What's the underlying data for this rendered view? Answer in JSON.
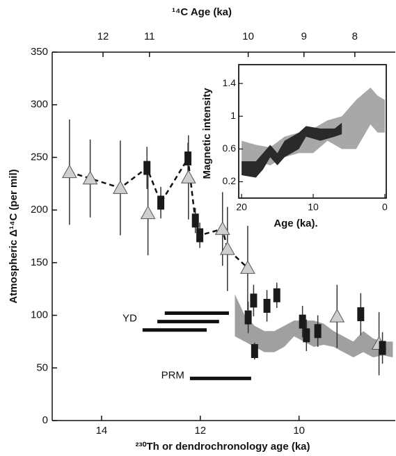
{
  "chart_data": [
    {
      "type": "scatter",
      "ylabel": "Atmospheric Δ¹⁴C (per mil)",
      "xlabel": "²³⁰Th or dendrochronology age (ka)",
      "x2label": "¹⁴C Age (ka)",
      "xlim": [
        15,
        8.05
      ],
      "ylim": [
        0,
        350
      ],
      "xticks": [
        14,
        12,
        10
      ],
      "yticks": [
        0,
        50,
        100,
        150,
        200,
        250,
        300,
        350
      ],
      "x2ticks": [
        12,
        11,
        10,
        9,
        8
      ],
      "x2tick_positions": [
        13.97,
        13.03,
        11.03,
        9.9,
        8.87
      ],
      "series": [
        {
          "marker": "triangle",
          "color": "#cfcfcf",
          "x": [
            14.65,
            14.23,
            13.62,
            13.06,
            12.24,
            11.55,
            11.45,
            11.04,
            9.23,
            8.38
          ],
          "values": [
            236,
            230,
            221,
            197,
            231,
            182,
            163,
            145,
            99,
            73
          ],
          "errors": [
            50,
            37,
            45,
            40,
            40,
            35,
            40,
            40,
            30,
            30
          ]
        },
        {
          "marker": "square",
          "color": "#1a1a1a",
          "x": [
            13.08,
            12.8,
            12.25,
            12.1,
            12.01,
            11.03,
            10.92,
            10.9,
            10.65,
            10.45,
            9.93,
            9.85,
            9.62,
            8.75,
            8.31
          ],
          "values": [
            240,
            207,
            249,
            190,
            176,
            98,
            114,
            66,
            109,
            119,
            94,
            81,
            85,
            101,
            69
          ],
          "errors": [
            20,
            15,
            15,
            12,
            12,
            15,
            15,
            8,
            15,
            12,
            15,
            15,
            15,
            20,
            15
          ]
        }
      ],
      "dashed_line": {
        "x": [
          14.65,
          14.23,
          13.62,
          13.08,
          12.8,
          12.25,
          12.1,
          12.01,
          11.55,
          11.45,
          11.04
        ],
        "values": [
          236,
          230,
          221,
          240,
          207,
          249,
          190,
          176,
          182,
          163,
          145
        ]
      },
      "band": {
        "color": "#a0a0a0",
        "x": [
          11.3,
          11.1,
          10.9,
          10.7,
          10.5,
          10.3,
          10.1,
          9.9,
          9.7,
          9.5,
          9.3,
          9.1,
          8.9,
          8.7,
          8.5,
          8.3,
          8.1
        ],
        "lower": [
          80,
          75,
          70,
          65,
          65,
          70,
          80,
          75,
          70,
          72,
          70,
          65,
          60,
          65,
          60,
          62,
          60
        ],
        "upper": [
          120,
          100,
          90,
          85,
          85,
          90,
          95,
          95,
          95,
          92,
          85,
          80,
          75,
          85,
          78,
          75,
          75
        ]
      },
      "intervals": [
        {
          "label": "YD",
          "bars": [
            {
              "y": 102,
              "start": 12.72,
              "end": 11.42
            },
            {
              "y": 94,
              "start": 12.87,
              "end": 11.62
            },
            {
              "y": 86,
              "start": 13.17,
              "end": 11.87
            }
          ]
        },
        {
          "label": "PRM",
          "bars": [
            {
              "y": 40,
              "start": 12.21,
              "end": 10.97
            }
          ]
        }
      ]
    },
    {
      "type": "area",
      "ylabel": "Magnetic intensity",
      "xlabel": "Age (ka).",
      "xlim": [
        20.4,
        -0.2
      ],
      "ylim": [
        0,
        1.63
      ],
      "xticks": [
        20,
        10,
        0
      ],
      "yticks": [
        0.2,
        0.6,
        1.0,
        1.4
      ],
      "bands": [
        {
          "color": "#a8a8a8",
          "x": [
            20,
            18,
            16,
            14,
            12,
            10,
            8,
            6,
            4,
            2,
            1,
            0
          ],
          "lower": [
            0.45,
            0.45,
            0.4,
            0.5,
            0.55,
            0.55,
            0.7,
            0.6,
            0.6,
            0.9,
            0.8,
            0.8
          ],
          "upper": [
            0.7,
            0.65,
            0.62,
            0.75,
            0.8,
            0.85,
            0.95,
            1.0,
            1.2,
            1.35,
            1.25,
            1.2
          ]
        },
        {
          "color": "#2a2a2a",
          "x": [
            20,
            18,
            17,
            16,
            15,
            14,
            12,
            11,
            9,
            7,
            6
          ],
          "lower": [
            0.28,
            0.25,
            0.35,
            0.5,
            0.4,
            0.5,
            0.6,
            0.75,
            0.7,
            0.75,
            0.78
          ],
          "upper": [
            0.45,
            0.45,
            0.55,
            0.65,
            0.55,
            0.7,
            0.8,
            0.88,
            0.85,
            0.85,
            0.92
          ]
        }
      ]
    }
  ]
}
